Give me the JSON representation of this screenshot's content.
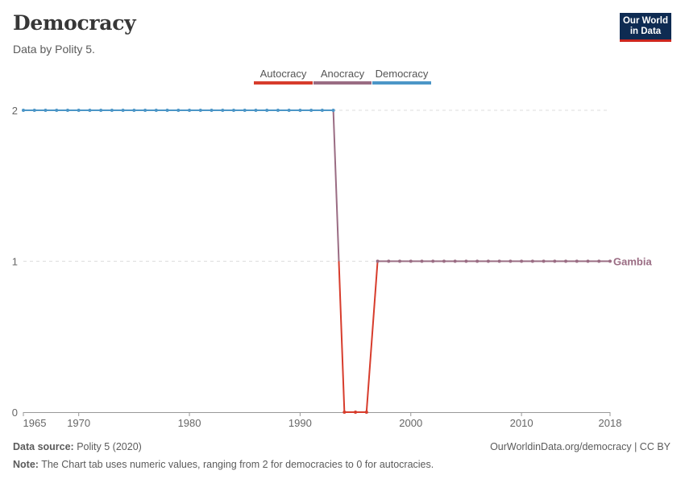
{
  "header": {
    "title": "Democracy",
    "subtitle": "Data by Polity 5.",
    "logo_line1": "Our World",
    "logo_line2": "in Data"
  },
  "footer": {
    "source_label": "Data source:",
    "source_value": "Polity 5 (2020)",
    "url": "OurWorldinData.org/democracy | CC BY",
    "note_label": "Note:",
    "note_value": "The Chart tab uses numeric values, ranging from 2 for democracies to 0 for autocracies."
  },
  "chart_data": {
    "type": "line",
    "title": "Democracy",
    "subtitle": "Data by Polity 5.",
    "xlabel": "",
    "ylabel": "",
    "xlim": [
      1965,
      2018
    ],
    "ylim": [
      0,
      2
    ],
    "x_ticks": [
      1965,
      1970,
      1980,
      1990,
      2000,
      2010,
      2018
    ],
    "y_ticks": [
      0,
      1,
      2
    ],
    "grid": true,
    "legend": {
      "placement": "top-center",
      "entries": [
        {
          "label": "Autocracy",
          "color": "#d73c2c"
        },
        {
          "label": "Anocracy",
          "color": "#9a6c83"
        },
        {
          "label": "Democracy",
          "color": "#4c96c7"
        }
      ]
    },
    "series": [
      {
        "name": "Gambia",
        "label_color": "#9a6c83",
        "x": [
          1965,
          1966,
          1967,
          1968,
          1969,
          1970,
          1971,
          1972,
          1973,
          1974,
          1975,
          1976,
          1977,
          1978,
          1979,
          1980,
          1981,
          1982,
          1983,
          1984,
          1985,
          1986,
          1987,
          1988,
          1989,
          1990,
          1991,
          1992,
          1993,
          1994,
          1995,
          1996,
          1997,
          1998,
          1999,
          2000,
          2001,
          2002,
          2003,
          2004,
          2005,
          2006,
          2007,
          2008,
          2009,
          2010,
          2011,
          2012,
          2013,
          2014,
          2015,
          2016,
          2017,
          2018
        ],
        "values": [
          2,
          2,
          2,
          2,
          2,
          2,
          2,
          2,
          2,
          2,
          2,
          2,
          2,
          2,
          2,
          2,
          2,
          2,
          2,
          2,
          2,
          2,
          2,
          2,
          2,
          2,
          2,
          2,
          2,
          0,
          0,
          0,
          1,
          1,
          1,
          1,
          1,
          1,
          1,
          1,
          1,
          1,
          1,
          1,
          1,
          1,
          1,
          1,
          1,
          1,
          1,
          1,
          1,
          1
        ]
      }
    ]
  }
}
